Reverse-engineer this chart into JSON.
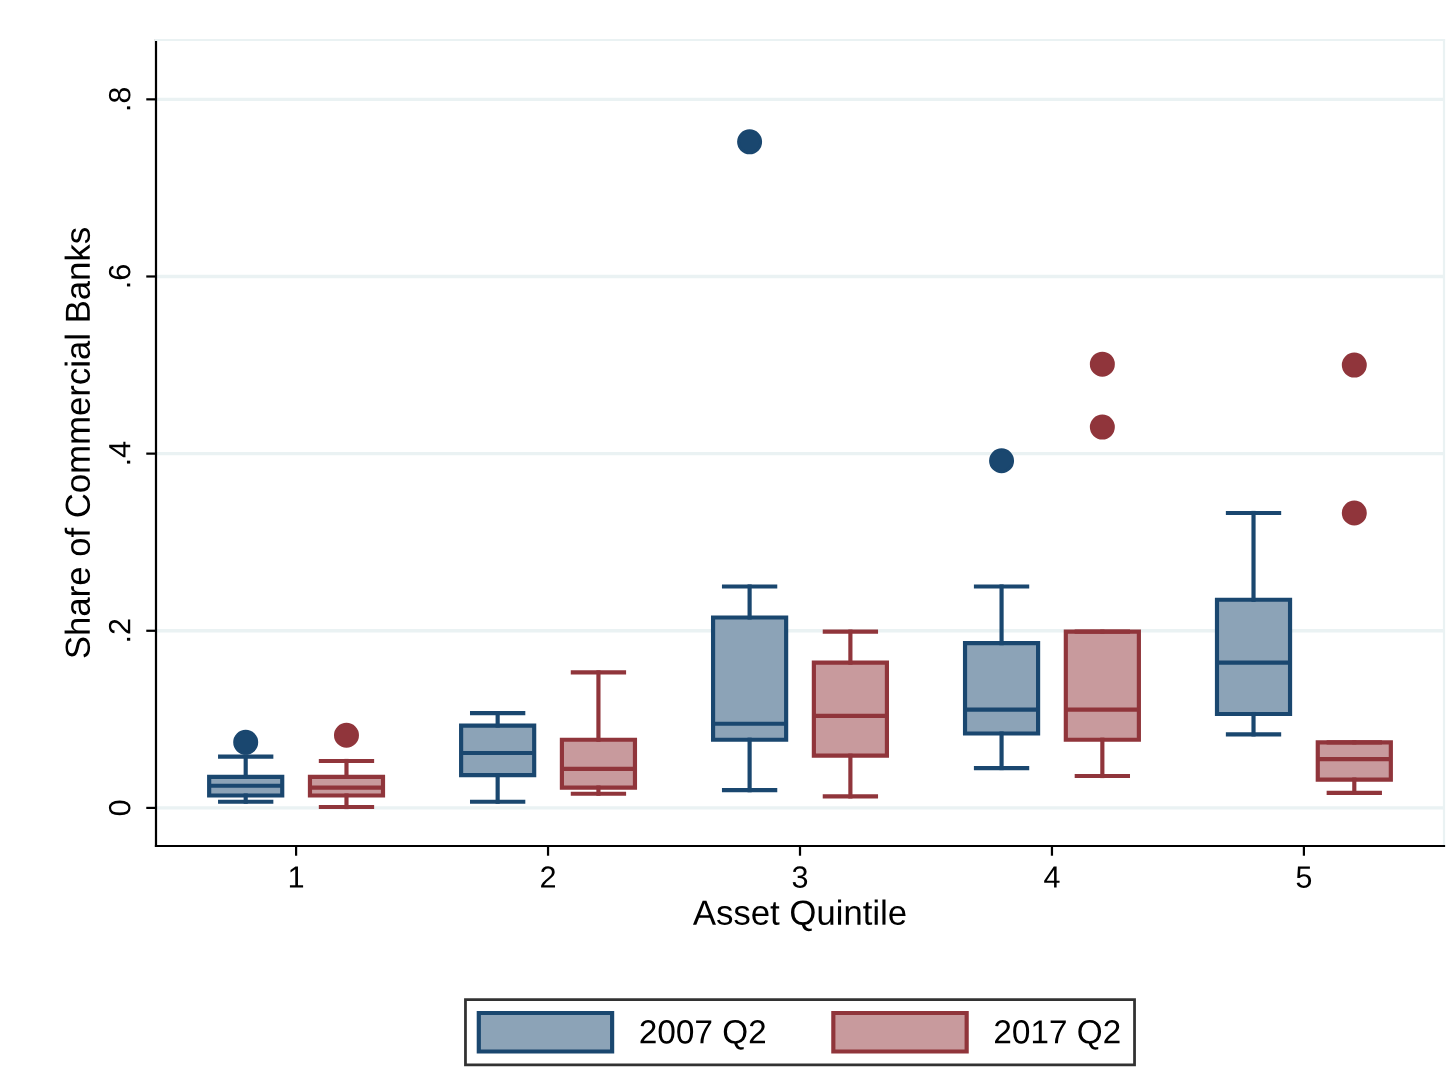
{
  "chart_data": {
    "type": "box",
    "xlabel": "Asset Quintile",
    "ylabel": "Share of Commercial Banks",
    "categories": [
      "1",
      "2",
      "3",
      "4",
      "5"
    ],
    "ylim": [
      -0.043,
      0.867
    ],
    "yticks": [
      {
        "value": 0,
        "label": "0"
      },
      {
        "value": 0.2,
        "label": ".2"
      },
      {
        "value": 0.4,
        "label": ".4"
      },
      {
        "value": 0.6,
        "label": ".6"
      },
      {
        "value": 0.8,
        "label": ".8"
      }
    ],
    "grid": "y",
    "legend": "bottom",
    "series": [
      {
        "name": "2007 Q2",
        "color": "#1a476f",
        "boxes": [
          {
            "low": 0.007,
            "q1": 0.014,
            "median": 0.025,
            "q3": 0.035,
            "high": 0.058,
            "outliers": [
              0.074
            ]
          },
          {
            "low": 0.007,
            "q1": 0.037,
            "median": 0.062,
            "q3": 0.093,
            "high": 0.107
          },
          {
            "low": 0.02,
            "q1": 0.077,
            "median": 0.095,
            "q3": 0.215,
            "high": 0.25,
            "outliers": [
              0.752
            ]
          },
          {
            "low": 0.045,
            "q1": 0.084,
            "median": 0.111,
            "q3": 0.186,
            "high": 0.25,
            "outliers": [
              0.392
            ]
          },
          {
            "low": 0.083,
            "q1": 0.106,
            "median": 0.164,
            "q3": 0.235,
            "high": 0.333
          }
        ]
      },
      {
        "name": "2017 Q2",
        "color": "#90353b",
        "boxes": [
          {
            "low": 0.001,
            "q1": 0.014,
            "median": 0.023,
            "q3": 0.035,
            "high": 0.053,
            "outliers": [
              0.082
            ]
          },
          {
            "low": 0.016,
            "q1": 0.023,
            "median": 0.044,
            "q3": 0.077,
            "high": 0.153
          },
          {
            "low": 0.013,
            "q1": 0.059,
            "median": 0.104,
            "q3": 0.164,
            "high": 0.199
          },
          {
            "low": 0.036,
            "q1": 0.077,
            "median": 0.111,
            "q3": 0.199,
            "high": 0.199,
            "outliers": [
              0.43,
              0.501
            ]
          },
          {
            "low": 0.017,
            "q1": 0.032,
            "median": 0.055,
            "q3": 0.074,
            "high": 0.074,
            "outliers": [
              0.333,
              0.5
            ]
          }
        ]
      }
    ]
  }
}
